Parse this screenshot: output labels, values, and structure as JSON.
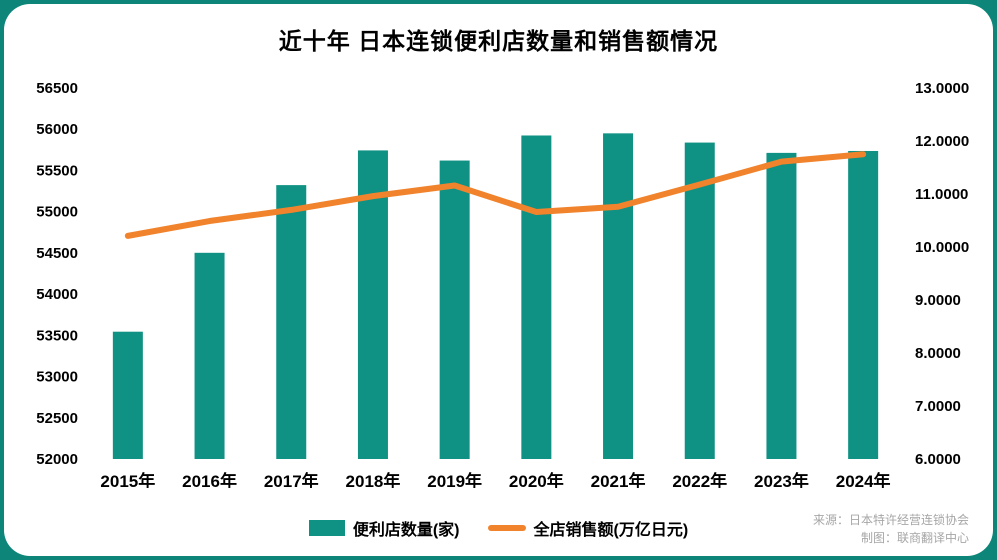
{
  "title": "近十年 日本连锁便利店数量和销售额情况",
  "source": {
    "line1": "来源：日本特许经营连锁协会",
    "line2": "制图：联商翻译中心"
  },
  "colors": {
    "background_teal": "#0d8578",
    "bar_teal": "#0f9184",
    "line_orange": "#f0832c",
    "text_black": "#000000",
    "source_gray": "#a6a6a6"
  },
  "chart_data": {
    "type": "bar",
    "subtype": "bar+line combo, dual axis",
    "title": "近十年 日本连锁便利店数量和销售额情况",
    "categories": [
      "2015年",
      "2016年",
      "2017年",
      "2018年",
      "2019年",
      "2020年",
      "2021年",
      "2022年",
      "2023年",
      "2024年"
    ],
    "series": [
      {
        "name": "便利店数量(家)",
        "type": "bar",
        "axis": "left",
        "color": "#0f9184",
        "values": [
          53544,
          54501,
          55322,
          55743,
          55620,
          55924,
          55950,
          55838,
          55713,
          55736
        ]
      },
      {
        "name": "全店销售额(万亿日元)",
        "type": "line",
        "axis": "right",
        "color": "#f0832c",
        "values": [
          10.21,
          10.49,
          10.7,
          10.96,
          11.16,
          10.66,
          10.76,
          11.18,
          11.61,
          11.75
        ]
      }
    ],
    "left_axis": {
      "min": 52000,
      "max": 56500,
      "step": 500
    },
    "right_axis": {
      "min": 6,
      "max": 13,
      "step": 1,
      "decimals": 4
    },
    "grid": false,
    "legend_position": "bottom"
  }
}
